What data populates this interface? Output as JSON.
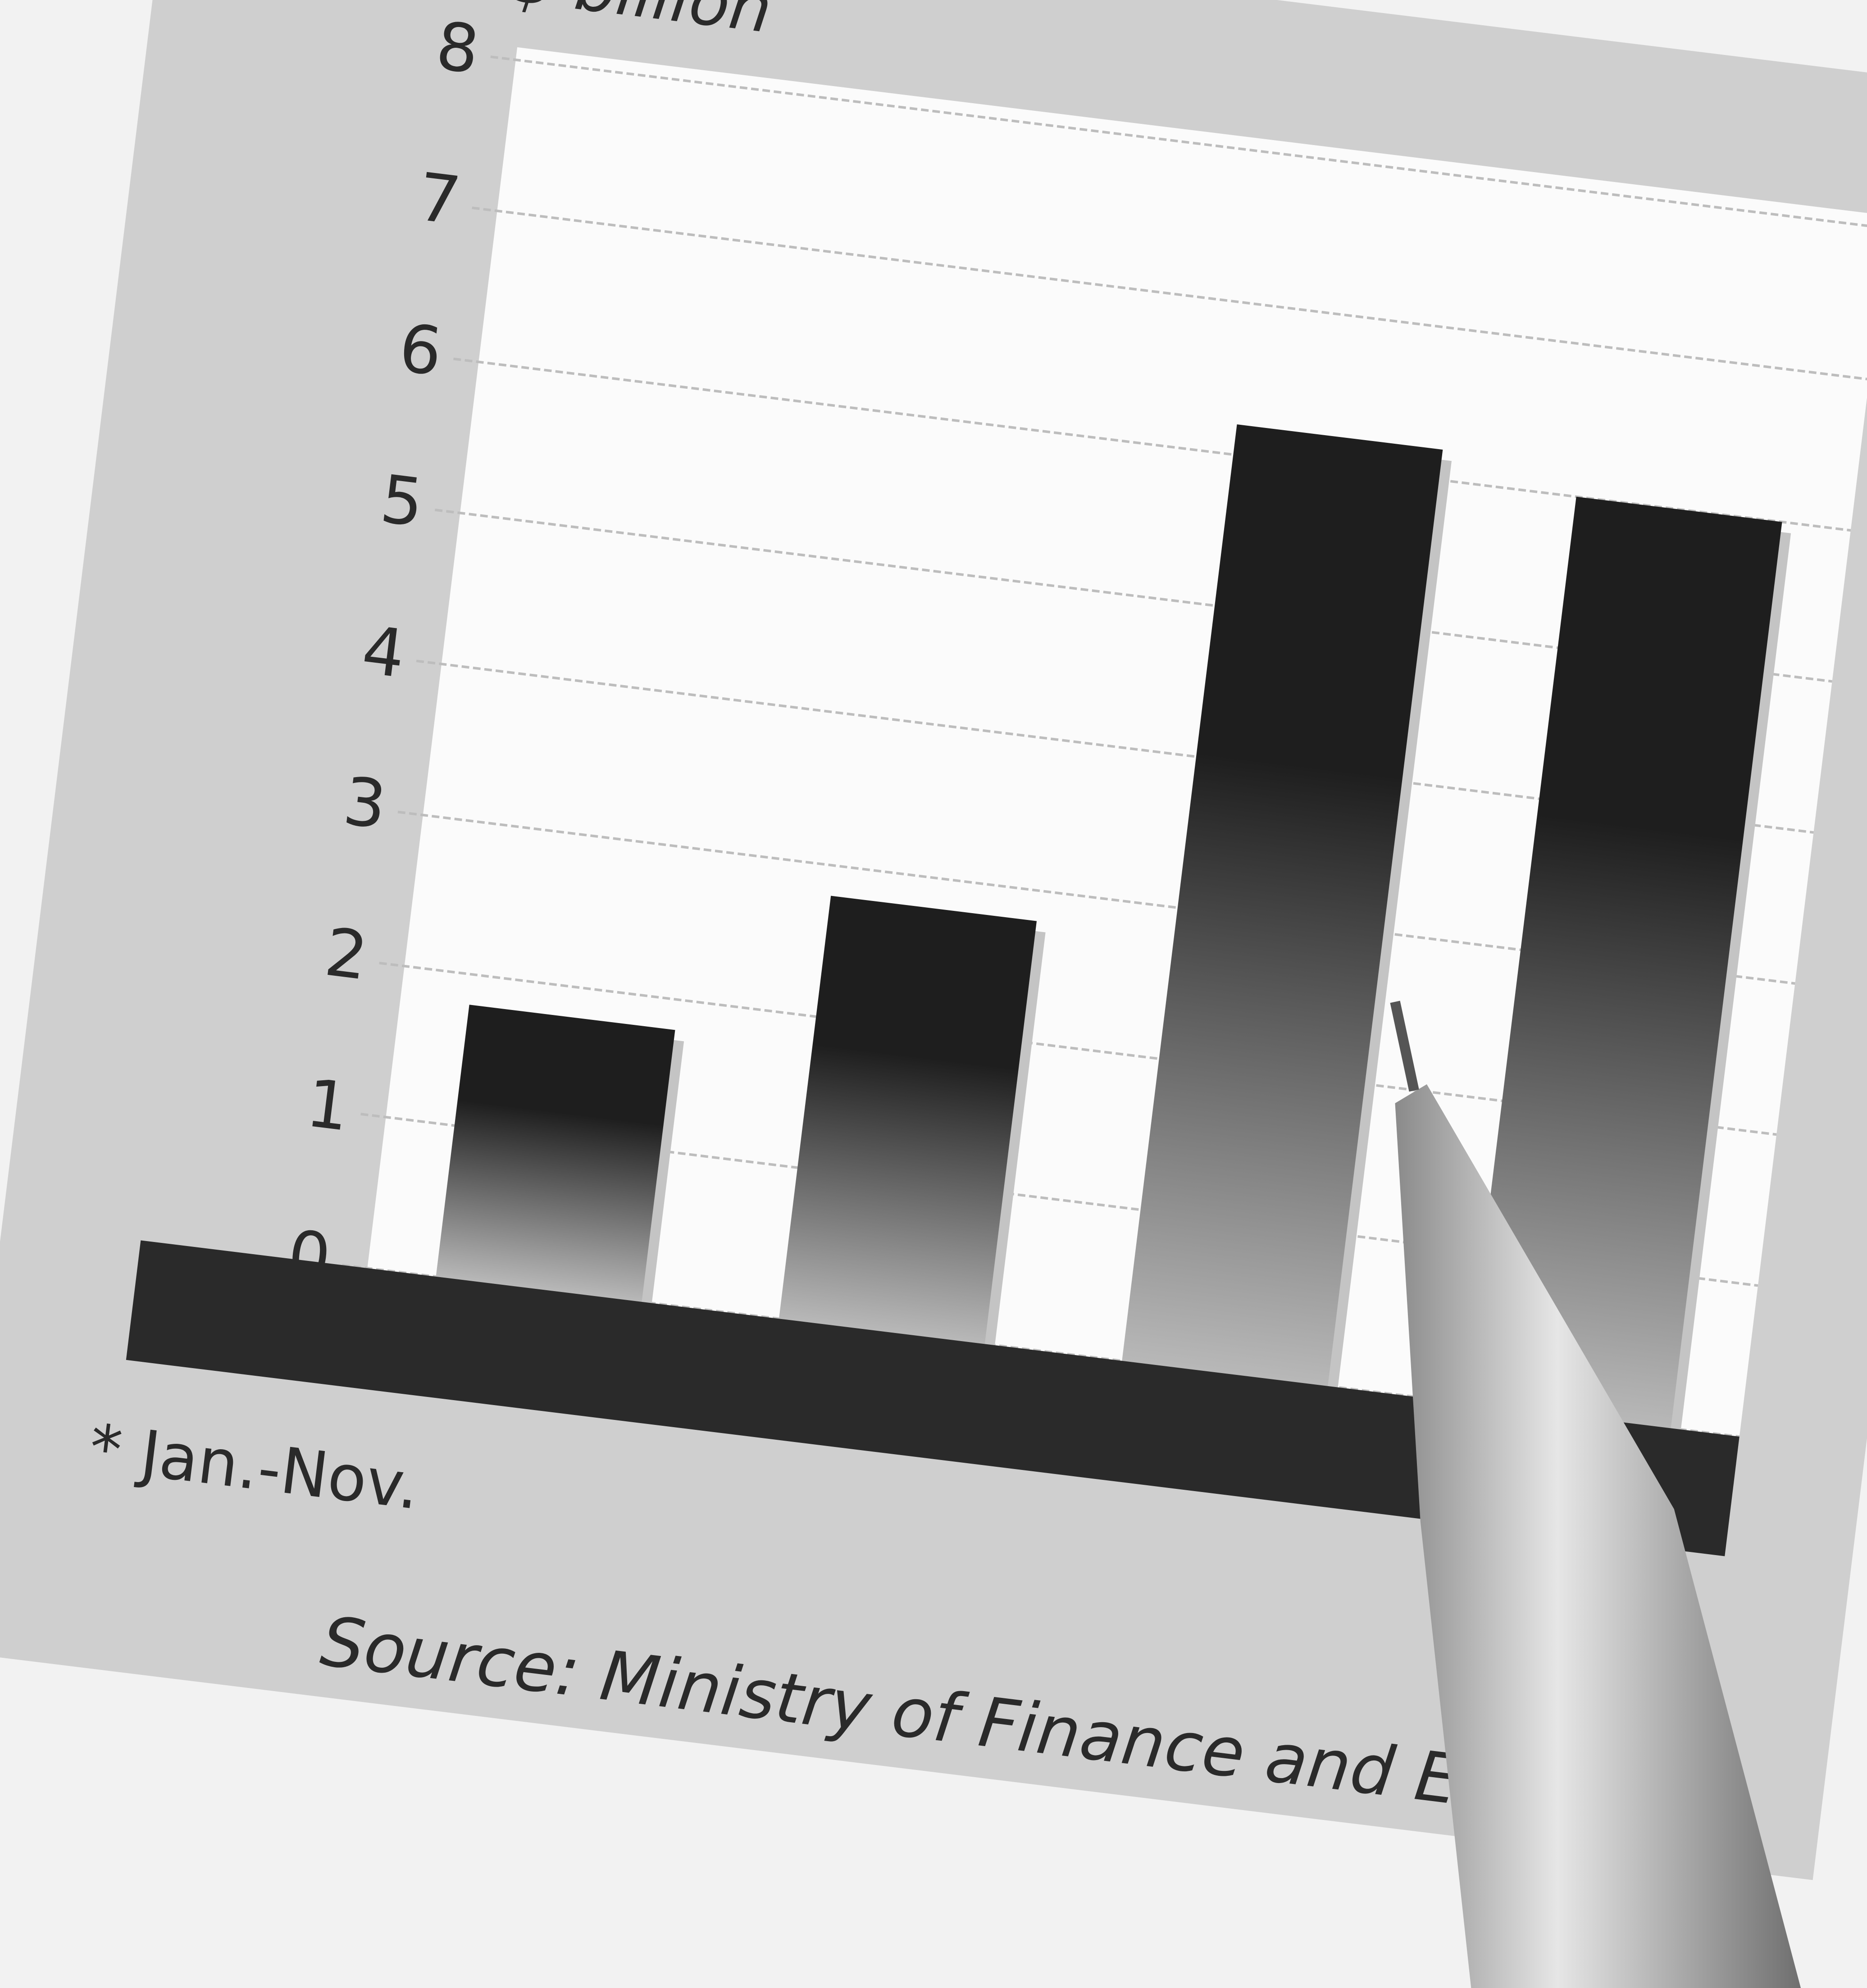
{
  "chart_data": {
    "type": "bar",
    "y_label": "$ billion",
    "categories": [
      null,
      null,
      null,
      null
    ],
    "values": [
      1.8,
      2.8,
      6.2,
      6.0
    ],
    "color": "#1e1e1e",
    "ylim": [
      0,
      8
    ],
    "yticks": [
      0,
      1,
      2,
      3,
      4,
      5,
      6,
      7,
      8
    ],
    "grid": true,
    "footnote": "* Jan.-Nov.",
    "source": "Source: Ministry of Finance and Eco"
  }
}
